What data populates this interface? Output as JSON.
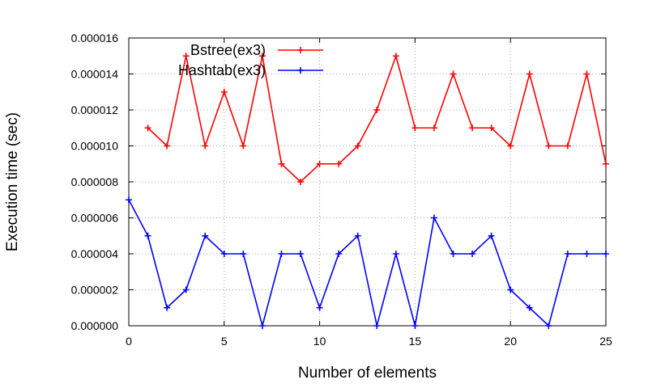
{
  "chart_data": {
    "type": "line",
    "xlabel": "Number of elements",
    "ylabel": "Execution time (sec)",
    "xlim": [
      0,
      25
    ],
    "ylim": [
      0,
      1.6e-05
    ],
    "x_ticks": [
      "0",
      "5",
      "10",
      "15",
      "20",
      "25"
    ],
    "y_ticks": [
      "0.000000",
      "0.000002",
      "0.000004",
      "0.000006",
      "0.000008",
      "0.000010",
      "0.000012",
      "0.000014",
      "0.000016"
    ],
    "grid": true,
    "legend_position": "top-left",
    "series": [
      {
        "name": "Bstree(ex3)",
        "color": "#ff0000",
        "x": [
          1,
          2,
          3,
          4,
          5,
          6,
          7,
          8,
          9,
          10,
          11,
          12,
          13,
          14,
          15,
          16,
          17,
          18,
          19,
          20,
          21,
          22,
          23,
          24,
          25
        ],
        "values": [
          1.1e-05,
          1e-05,
          1.5e-05,
          1e-05,
          1.3e-05,
          1e-05,
          1.5e-05,
          9e-06,
          8e-06,
          9e-06,
          9e-06,
          1e-05,
          1.2e-05,
          1.5e-05,
          1.1e-05,
          1.1e-05,
          1.4e-05,
          1.1e-05,
          1.1e-05,
          1e-05,
          1.4e-05,
          1e-05,
          1e-05,
          1.4e-05,
          9e-06
        ]
      },
      {
        "name": "Hashtab(ex3)",
        "color": "#0000ff",
        "x": [
          0,
          1,
          2,
          3,
          4,
          5,
          6,
          7,
          8,
          9,
          10,
          11,
          12,
          13,
          14,
          15,
          16,
          17,
          18,
          19,
          20,
          21,
          22,
          23,
          24,
          25
        ],
        "values": [
          7e-06,
          5e-06,
          1e-06,
          2e-06,
          5e-06,
          4e-06,
          4e-06,
          0,
          4e-06,
          4e-06,
          1e-06,
          4e-06,
          5e-06,
          0,
          4e-06,
          0,
          6e-06,
          4e-06,
          4e-06,
          5e-06,
          2e-06,
          1e-06,
          0,
          4e-06,
          4e-06,
          4e-06
        ]
      }
    ]
  }
}
